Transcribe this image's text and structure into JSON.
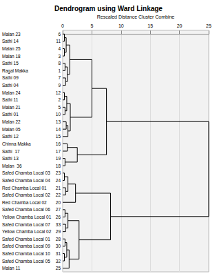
{
  "chart_data": {
    "type": "dendrogram",
    "title": "Dendrogram using Ward Linkage",
    "x_label": "Rescaled Distance Cluster Combine",
    "xlim": [
      0,
      25
    ],
    "xticks": [
      0,
      5,
      10,
      15,
      20,
      25
    ],
    "grid": true,
    "leaves": [
      {
        "label": "Malan 23",
        "case": 6
      },
      {
        "label": "Sathi 14",
        "case": 11
      },
      {
        "label": "Malan 25",
        "case": 4
      },
      {
        "label": "Malan 18",
        "case": 3
      },
      {
        "label": "Sathi 15",
        "case": 8
      },
      {
        "label": "Ragal Makka",
        "case": 1
      },
      {
        "label": "Sathi 09",
        "case": 7
      },
      {
        "label": "Sathi 04",
        "case": 9
      },
      {
        "label": "Malan 24",
        "case": 12
      },
      {
        "label": "Sathi 11",
        "case": 2
      },
      {
        "label": "Malan 21",
        "case": 5
      },
      {
        "label": "Sathi 01",
        "case": 10
      },
      {
        "label": "Malan 22",
        "case": 13
      },
      {
        "label": "Malan 05",
        "case": 14
      },
      {
        "label": "Sathi 12",
        "case": 15
      },
      {
        "label": "Chinna Makka",
        "case": 16
      },
      {
        "label": "Sathi  17",
        "case": 17
      },
      {
        "label": "Sathi 13",
        "case": 19
      },
      {
        "label": "Malan  36",
        "case": 18
      },
      {
        "label": "Safed Chamba Local 03",
        "case": 23
      },
      {
        "label": "Safed Chamba Local 04",
        "case": 24
      },
      {
        "label": "Red Chamba Local 01",
        "case": 21
      },
      {
        "label": "Safed Chamba Local 02",
        "case": 22
      },
      {
        "label": "Red Chamba Local 02",
        "case": 20
      },
      {
        "label": "Safed Chamba Local 06",
        "case": 27
      },
      {
        "label": "Yellow Chamba Local 01",
        "case": 26
      },
      {
        "label": "Safed Chamba Local 07",
        "case": 33
      },
      {
        "label": "Yellow Chamba Local 02",
        "case": 29
      },
      {
        "label": "Safed Chamba Local 01",
        "case": 28
      },
      {
        "label": "Safed Chamba Local 09",
        "case": 30
      },
      {
        "label": "Safed Chamba Local 10",
        "case": 31
      },
      {
        "label": "Safed Chamba Local 05",
        "case": 32
      },
      {
        "label": "Malan 11",
        "case": 25
      }
    ],
    "merges": [
      {
        "left": 0,
        "right": 1,
        "distance": 0.3
      },
      {
        "left": 2,
        "right": 3,
        "distance": 0.3
      },
      {
        "left": 4,
        "right": 5,
        "distance": 0.4
      },
      {
        "left": 6,
        "right": 7,
        "distance": 0.5
      },
      {
        "left": 33,
        "right": 34,
        "distance": 0.6
      },
      {
        "left": 35,
        "right": 36,
        "distance": 0.8
      },
      {
        "left": 37,
        "right": 38,
        "distance": 1.2
      },
      {
        "left": 8,
        "right": 9,
        "distance": 0.3
      },
      {
        "left": 10,
        "right": 11,
        "distance": 0.4
      },
      {
        "left": 40,
        "right": 41,
        "distance": 0.7
      },
      {
        "left": 12,
        "right": 13,
        "distance": 0.6
      },
      {
        "left": 43,
        "right": 14,
        "distance": 0.9
      },
      {
        "left": 42,
        "right": 44,
        "distance": 1.3
      },
      {
        "left": 39,
        "right": 45,
        "distance": 5
      },
      {
        "left": 15,
        "right": 16,
        "distance": 0.8
      },
      {
        "left": 17,
        "right": 18,
        "distance": 0.4
      },
      {
        "left": 47,
        "right": 48,
        "distance": 2.5
      },
      {
        "left": 46,
        "right": 49,
        "distance": 7.5
      },
      {
        "left": 19,
        "right": 20,
        "distance": 0.3
      },
      {
        "left": 21,
        "right": 22,
        "distance": 0.5
      },
      {
        "left": 51,
        "right": 52,
        "distance": 0.9
      },
      {
        "left": 53,
        "right": 23,
        "distance": 2.2
      },
      {
        "left": 24,
        "right": 25,
        "distance": 0.4
      },
      {
        "left": 26,
        "right": 27,
        "distance": 0.5
      },
      {
        "left": 55,
        "right": 56,
        "distance": 0.9
      },
      {
        "left": 28,
        "right": 29,
        "distance": 0.4
      },
      {
        "left": 30,
        "right": 31,
        "distance": 0.3
      },
      {
        "left": 58,
        "right": 59,
        "distance": 0.7
      },
      {
        "left": 60,
        "right": 32,
        "distance": 1.1
      },
      {
        "left": 57,
        "right": 61,
        "distance": 2.8
      },
      {
        "left": 54,
        "right": 62,
        "distance": 8.2
      },
      {
        "left": 50,
        "right": 63,
        "distance": 25
      }
    ]
  }
}
